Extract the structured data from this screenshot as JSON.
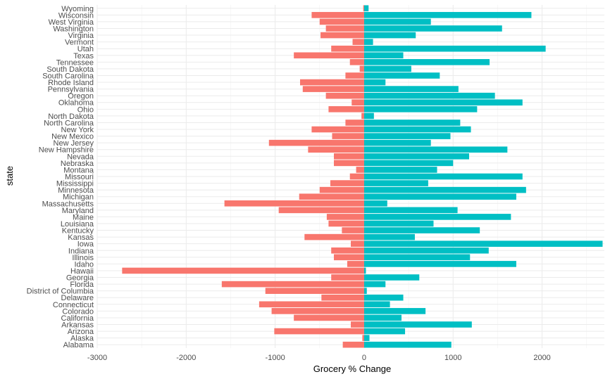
{
  "chart_data": {
    "type": "bar",
    "orientation": "horizontal",
    "xlabel": "Grocery % Change",
    "ylabel": "state",
    "xlim": [
      -3000,
      2700
    ],
    "x_ticks": [
      -3000,
      -2000,
      -1000,
      0,
      1000,
      2000
    ],
    "x_tick_labels": [
      "-3000",
      "-2000",
      "-1000",
      "0",
      "1000",
      "2000"
    ],
    "grid": true,
    "legend": "none",
    "colors": {
      "negative": "#F8766D",
      "positive": "#00BFC4"
    },
    "categories": [
      "Alabama",
      "Alaska",
      "Arizona",
      "Arkansas",
      "California",
      "Colorado",
      "Connecticut",
      "Delaware",
      "District of Columbia",
      "Florida",
      "Georgia",
      "Hawaii",
      "Idaho",
      "Illinois",
      "Indiana",
      "Iowa",
      "Kansas",
      "Kentucky",
      "Louisiana",
      "Maine",
      "Maryland",
      "Massachusetts",
      "Michigan",
      "Minnesota",
      "Mississippi",
      "Missouri",
      "Montana",
      "Nebraska",
      "Nevada",
      "New Hampshire",
      "New Jersey",
      "New Mexico",
      "New York",
      "North Carolina",
      "North Dakota",
      "Ohio",
      "Oklahoma",
      "Oregon",
      "Pennsylvania",
      "Rhode Island",
      "South Carolina",
      "South Dakota",
      "Tennessee",
      "Texas",
      "Utah",
      "Vermont",
      "Virginia",
      "Washington",
      "West Virginia",
      "Wisconsin",
      "Wyoming"
    ],
    "series": [
      {
        "sign": "negative",
        "values": [
          -240,
          -20,
          -1010,
          -150,
          -790,
          -1040,
          -1180,
          -480,
          -1110,
          -1600,
          -370,
          -2720,
          -190,
          -340,
          -370,
          -150,
          -670,
          -250,
          -400,
          -420,
          -960,
          -1570,
          -730,
          -500,
          -380,
          -160,
          -90,
          -340,
          -340,
          -630,
          -1070,
          -360,
          -590,
          -210,
          -30,
          -400,
          -140,
          -430,
          -690,
          -720,
          -210,
          -50,
          -160,
          -790,
          -370,
          -130,
          -490,
          -430,
          -500,
          -590,
          -10
        ]
      },
      {
        "sign": "positive",
        "values": [
          980,
          60,
          460,
          1210,
          420,
          690,
          290,
          440,
          30,
          240,
          620,
          20,
          1710,
          1190,
          1400,
          2680,
          570,
          1300,
          780,
          1650,
          1050,
          260,
          1710,
          1820,
          720,
          1780,
          820,
          1000,
          1180,
          1610,
          750,
          970,
          1200,
          1080,
          110,
          1270,
          1780,
          1470,
          1060,
          240,
          850,
          530,
          1410,
          440,
          2040,
          100,
          580,
          1550,
          750,
          1880,
          50
        ]
      }
    ]
  }
}
